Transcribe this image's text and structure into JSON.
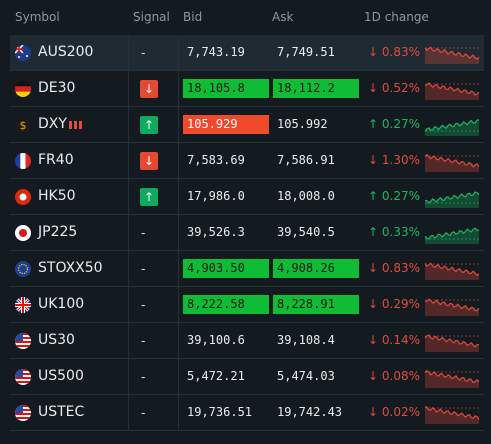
{
  "header": {
    "symbol": "Symbol",
    "signal": "Signal",
    "bid": "Bid",
    "ask": "Ask",
    "change": "1D change"
  },
  "rows": [
    {
      "symbol": "AUS200",
      "flag": "flag-au-icon",
      "signal": "-",
      "bid": "7,743.19",
      "ask": "7,749.51",
      "change": "↓ 0.83%",
      "dir": "down",
      "selected": true
    },
    {
      "symbol": "DE30",
      "flag": "flag-de-icon",
      "signal": "↓",
      "bid": "18,105.8",
      "ask": "18,112.2",
      "change": "↓ 0.52%",
      "dir": "down",
      "bid_hl": "green",
      "ask_hl": "green"
    },
    {
      "symbol": "DXY",
      "flag": "dollar-icon",
      "signal": "↑",
      "bid": "105.929",
      "ask": "105.992",
      "change": "↑ 0.27%",
      "dir": "up",
      "bid_hl": "red",
      "bars": 3
    },
    {
      "symbol": "FR40",
      "flag": "flag-fr-icon",
      "signal": "↓",
      "bid": "7,583.69",
      "ask": "7,586.91",
      "change": "↓ 1.30%",
      "dir": "down"
    },
    {
      "symbol": "HK50",
      "flag": "flag-hk-icon",
      "signal": "↑",
      "bid": "17,986.0",
      "ask": "18,008.0",
      "change": "↑ 0.27%",
      "dir": "up"
    },
    {
      "symbol": "JP225",
      "flag": "flag-jp-icon",
      "signal": "-",
      "bid": "39,526.3",
      "ask": "39,540.5",
      "change": "↑ 0.33%",
      "dir": "up"
    },
    {
      "symbol": "STOXX50",
      "flag": "flag-eu-icon",
      "signal": "-",
      "bid": "4,903.50",
      "ask": "4,908.26",
      "change": "↓ 0.83%",
      "dir": "down",
      "bid_hl": "green",
      "ask_hl": "green"
    },
    {
      "symbol": "UK100",
      "flag": "flag-uk-icon",
      "signal": "-",
      "bid": "8,222.58",
      "ask": "8,228.91",
      "change": "↓ 0.29%",
      "dir": "down",
      "bid_hl": "green",
      "ask_hl": "green"
    },
    {
      "symbol": "US30",
      "flag": "flag-us-icon",
      "signal": "-",
      "bid": "39,100.6",
      "ask": "39,108.4",
      "change": "↓ 0.14%",
      "dir": "down"
    },
    {
      "symbol": "US500",
      "flag": "flag-us-icon",
      "signal": "-",
      "bid": "5,472.21",
      "ask": "5,474.03",
      "change": "↓ 0.08%",
      "dir": "down"
    },
    {
      "symbol": "USTEC",
      "flag": "flag-us-icon",
      "signal": "-",
      "bid": "19,736.51",
      "ask": "19,742.43",
      "change": "↓ 0.02%",
      "dir": "down"
    }
  ],
  "colors": {
    "up": "#18b962",
    "down": "#e5493b",
    "bid_green": "#10bb35",
    "bid_red": "#f04a2d",
    "selected_row": "#1f2a33"
  }
}
